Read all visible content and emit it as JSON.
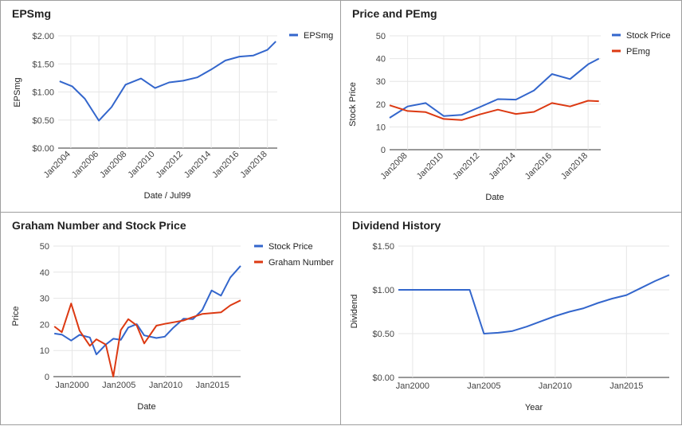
{
  "colors": {
    "blue": "#3366cc",
    "red": "#dc3912",
    "grid": "#e6e6e6",
    "baseline": "#333333",
    "text": "#444444"
  },
  "chart_data": [
    {
      "type": "line",
      "title": "EPSmg",
      "xlabel": "Date / Jul99",
      "ylabel": "EPSmg",
      "x_ticks": [
        2004,
        2006,
        2008,
        2010,
        2012,
        2014,
        2016,
        2018
      ],
      "x_tick_labels": [
        "Jan2004",
        "Jan2006",
        "Jan2008",
        "Jan2010",
        "Jan2012",
        "Jan2014",
        "Jan2016",
        "Jan2018"
      ],
      "x_tick_rotated": true,
      "xlim": [
        2003.1,
        2018.7
      ],
      "y_ticks": [
        0,
        0.5,
        1,
        1.5,
        2
      ],
      "y_tick_labels": [
        "$0.00",
        "$0.50",
        "$1.00",
        "$1.50",
        "$2.00"
      ],
      "ylim": [
        0,
        2
      ],
      "legend_position": "top-right",
      "series": [
        {
          "name": "EPSmg",
          "color": "blue",
          "x": [
            2003.2,
            2004.1,
            2005.0,
            2006.0,
            2006.9,
            2007.9,
            2009.0,
            2010.0,
            2011.0,
            2012.0,
            2013.0,
            2014.0,
            2015.0,
            2016.0,
            2017.0,
            2018.0,
            2018.6
          ],
          "y": [
            1.19,
            1.1,
            0.88,
            0.49,
            0.73,
            1.13,
            1.24,
            1.07,
            1.17,
            1.2,
            1.26,
            1.4,
            1.56,
            1.63,
            1.65,
            1.75,
            1.9
          ]
        }
      ]
    },
    {
      "type": "line",
      "title": "Price and PEmg",
      "xlabel": "Date",
      "ylabel": "Stock Price",
      "x_ticks": [
        2008,
        2010,
        2012,
        2014,
        2016,
        2018
      ],
      "x_tick_labels": [
        "Jan2008",
        "Jan2010",
        "Jan2012",
        "Jan2014",
        "Jan2016",
        "Jan2018"
      ],
      "x_tick_rotated": true,
      "xlim": [
        2007,
        2018.7
      ],
      "y_ticks": [
        0,
        10,
        20,
        30,
        40,
        50
      ],
      "y_tick_labels": [
        "0",
        "10",
        "20",
        "30",
        "40",
        "50"
      ],
      "ylim": [
        0,
        50
      ],
      "legend_position": "top-right",
      "series": [
        {
          "name": "Stock Price",
          "color": "blue",
          "x": [
            2007,
            2008,
            2009,
            2010,
            2011,
            2012,
            2013,
            2014,
            2015,
            2016,
            2017,
            2018,
            2018.6
          ],
          "y": [
            14,
            19,
            20.5,
            14.8,
            15.3,
            18.7,
            22.2,
            22,
            26,
            33.2,
            31,
            37.5,
            40
          ]
        },
        {
          "name": "PEmg",
          "color": "red",
          "x": [
            2007,
            2008,
            2009,
            2010,
            2011,
            2012,
            2013,
            2014,
            2015,
            2016,
            2017,
            2018,
            2018.6
          ],
          "y": [
            19.5,
            17,
            16.5,
            13.5,
            13,
            15.5,
            17.6,
            15.7,
            16.6,
            20.5,
            19,
            21.5,
            21.3
          ]
        }
      ]
    },
    {
      "type": "line",
      "title": "Graham Number and Stock Price",
      "xlabel": "Date",
      "ylabel": "Price",
      "x_ticks": [
        2000,
        2005,
        2010,
        2015
      ],
      "x_tick_labels": [
        "Jan2000",
        "Jan2005",
        "Jan2010",
        "Jan2015"
      ],
      "x_tick_rotated": false,
      "xlim": [
        1998,
        2018
      ],
      "y_ticks": [
        0,
        10,
        20,
        30,
        40,
        50
      ],
      "y_tick_labels": [
        "0",
        "10",
        "20",
        "30",
        "40",
        "50"
      ],
      "ylim": [
        0,
        50
      ],
      "legend_position": "top-right",
      "series": [
        {
          "name": "Stock Price",
          "color": "blue",
          "x": [
            1998.1,
            1998.9,
            1999.9,
            2000.8,
            2001.9,
            2002.6,
            2003.6,
            2004.4,
            2005.2,
            2006,
            2006.9,
            2007.7,
            2009.0,
            2009.9,
            2010.8,
            2011.9,
            2012.9,
            2013.9,
            2014.9,
            2015.9,
            2016.9,
            2018
          ],
          "y": [
            16.5,
            16.1,
            13.8,
            16,
            15,
            8.5,
            12.3,
            14.5,
            14.1,
            18.8,
            20.1,
            15.8,
            14.8,
            15.3,
            18.7,
            22.2,
            22,
            25.5,
            33,
            31,
            38,
            42.4
          ]
        },
        {
          "name": "Graham Number",
          "color": "red",
          "x": [
            1998.1,
            1998.9,
            1999.9,
            2000.8,
            2001.9,
            2002.6,
            2003.6,
            2004.4,
            2005.2,
            2006,
            2006.9,
            2007.7,
            2009.0,
            2009.9,
            2010.8,
            2011.9,
            2012.9,
            2013.9,
            2014.9,
            2015.9,
            2016.9,
            2018
          ],
          "y": [
            19.2,
            17,
            28,
            17.6,
            11.8,
            14.3,
            12.3,
            0,
            17.8,
            22,
            19.6,
            12.7,
            19.5,
            20.2,
            20.8,
            21.5,
            22.8,
            24,
            24.3,
            24.6,
            27.3,
            29.2
          ]
        }
      ]
    },
    {
      "type": "line",
      "title": "Dividend History",
      "xlabel": "Year",
      "ylabel": "Dividend",
      "x_ticks": [
        2000,
        2005,
        2010,
        2015
      ],
      "x_tick_labels": [
        "Jan2000",
        "Jan2005",
        "Jan2010",
        "Jan2015"
      ],
      "x_tick_rotated": false,
      "xlim": [
        1999,
        2018.0
      ],
      "y_ticks": [
        0,
        0.5,
        1,
        1.5
      ],
      "y_tick_labels": [
        "$0.00",
        "$0.50",
        "$1.00",
        "$1.50"
      ],
      "ylim": [
        0,
        1.5
      ],
      "legend_position": "none",
      "series": [
        {
          "name": "",
          "color": "blue",
          "x": [
            1999,
            2000,
            2001,
            2002,
            2003,
            2004,
            2005,
            2006,
            2007,
            2008,
            2009,
            2010,
            2011,
            2012,
            2013,
            2014,
            2015,
            2016,
            2017,
            2018
          ],
          "y": [
            1.0,
            1.0,
            1.0,
            1.0,
            1.0,
            1.0,
            0.5,
            0.51,
            0.53,
            0.58,
            0.64,
            0.7,
            0.75,
            0.79,
            0.85,
            0.9,
            0.94,
            1.02,
            1.1,
            1.17
          ]
        }
      ]
    }
  ]
}
